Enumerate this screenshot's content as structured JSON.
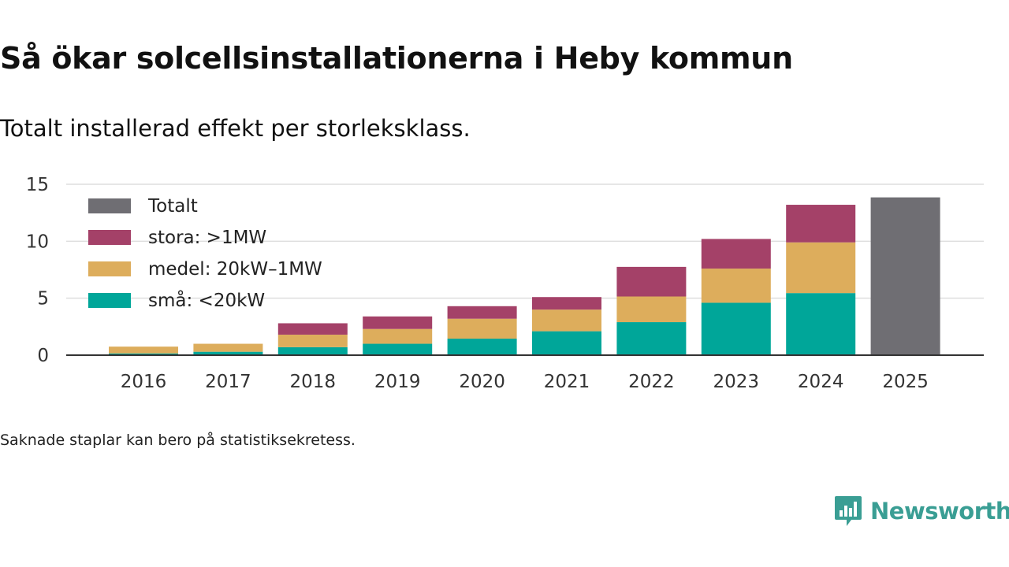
{
  "title": "Så ökar solcellsinstallationerna i Heby kommun",
  "subtitle": "Totalt installerad effekt per storleksklass.",
  "footnote": "Saknade staplar kan bero på statistiksekretess.",
  "brand": {
    "name": "Newsworthy",
    "color": "#3a9e94",
    "icon": "newsworthy-logo-icon"
  },
  "chart_data": {
    "type": "bar",
    "stacked": true,
    "title": "Så ökar solcellsinstallationerna i Heby kommun",
    "xlabel": "",
    "ylabel": "",
    "ylim": [
      0,
      15
    ],
    "yticks": [
      0,
      5,
      10,
      15
    ],
    "grid": true,
    "legend_position": "top-left",
    "categories": [
      "2016",
      "2017",
      "2018",
      "2019",
      "2020",
      "2021",
      "2022",
      "2023",
      "2024",
      "2025"
    ],
    "series": [
      {
        "name": "små: <20kW",
        "color": "#00a699",
        "values": [
          0.15,
          0.3,
          0.7,
          1.0,
          1.45,
          2.1,
          2.9,
          4.6,
          5.45,
          null
        ]
      },
      {
        "name": "medel: 20kW–1MW",
        "color": "#ddad5c",
        "values": [
          0.6,
          0.7,
          1.1,
          1.3,
          1.75,
          1.9,
          2.25,
          3.0,
          4.45,
          null
        ]
      },
      {
        "name": "stora: >1MW",
        "color": "#a44168",
        "values": [
          null,
          null,
          1.0,
          1.1,
          1.1,
          1.1,
          2.6,
          2.6,
          3.3,
          null
        ]
      },
      {
        "name": "Totalt",
        "color": "#6f6e73",
        "values": [
          null,
          null,
          null,
          null,
          null,
          null,
          null,
          null,
          null,
          13.85
        ]
      }
    ]
  }
}
